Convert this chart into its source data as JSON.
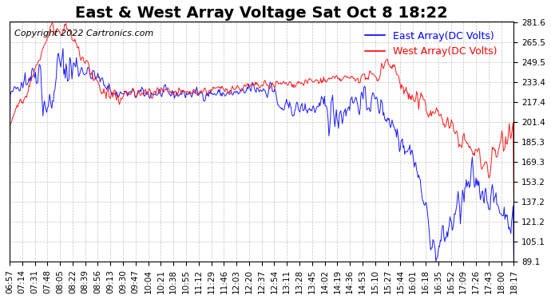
{
  "title": "East & West Array Voltage Sat Oct 8 18:22",
  "copyright": "Copyright 2022 Cartronics.com",
  "legend_east": "East Array(DC Volts)",
  "legend_west": "West Array(DC Volts)",
  "east_color": "#0000ff",
  "west_color": "#ff0000",
  "background_color": "#ffffff",
  "plot_bg_color": "#ffffff",
  "grid_color": "#aaaaaa",
  "ylim": [
    89.1,
    281.6
  ],
  "yticks": [
    89.1,
    105.1,
    121.2,
    137.2,
    153.2,
    169.3,
    185.3,
    201.4,
    217.4,
    233.4,
    249.5,
    265.5,
    281.6
  ],
  "xtick_labels": [
    "06:57",
    "07:14",
    "07:31",
    "07:48",
    "08:05",
    "08:22",
    "08:39",
    "08:56",
    "09:13",
    "09:30",
    "09:47",
    "10:04",
    "10:21",
    "10:38",
    "10:55",
    "11:12",
    "11:29",
    "11:46",
    "12:03",
    "12:20",
    "12:37",
    "12:54",
    "13:11",
    "13:28",
    "13:45",
    "14:02",
    "14:19",
    "14:36",
    "14:53",
    "15:10",
    "15:27",
    "15:44",
    "16:01",
    "16:18",
    "16:35",
    "16:52",
    "17:09",
    "17:26",
    "17:43",
    "18:00",
    "18:17"
  ],
  "title_fontsize": 14,
  "label_fontsize": 9,
  "tick_fontsize": 7.5,
  "copyright_fontsize": 8
}
